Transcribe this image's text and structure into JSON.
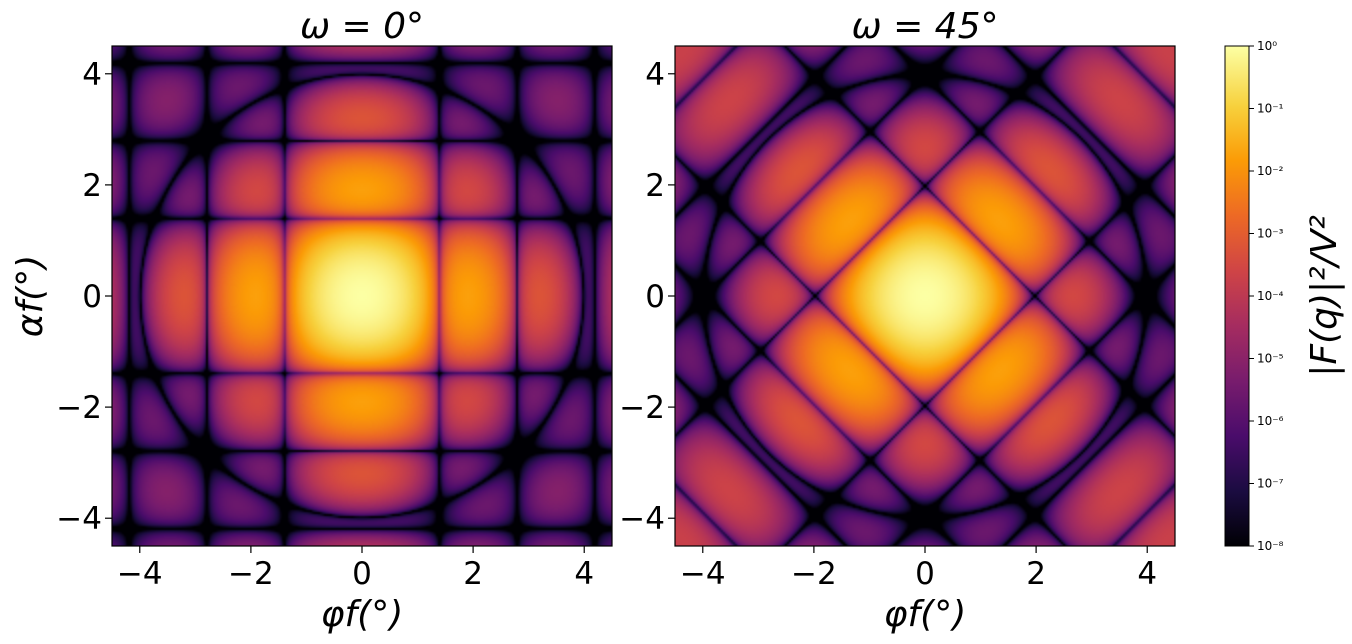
{
  "chart_data": [
    {
      "type": "heatmap",
      "title": "ω = 0°",
      "xlabel": "φf(°)",
      "ylabel": "αf(°)",
      "xlim": [
        -4.5,
        4.5
      ],
      "ylim": [
        -4.5,
        4.5
      ],
      "xticks": [
        -4,
        -2,
        0,
        2,
        4
      ],
      "yticks": [
        -4,
        -2,
        0,
        2,
        4
      ],
      "xticklabels": [
        "−4",
        "−2",
        "0",
        "2",
        "4"
      ],
      "yticklabels": [
        "−4",
        "−2",
        "0",
        "2",
        "4"
      ],
      "omega_deg": 0,
      "peak_center": [
        0,
        0
      ],
      "colormap": "inferno",
      "value_scale": "log"
    },
    {
      "type": "heatmap",
      "title": "ω = 45°",
      "xlabel": "φf(°)",
      "ylabel": "",
      "xlim": [
        -4.5,
        4.5
      ],
      "ylim": [
        -4.5,
        4.5
      ],
      "xticks": [
        -4,
        -2,
        0,
        2,
        4
      ],
      "yticks": [
        -4,
        -2,
        0,
        2,
        4
      ],
      "xticklabels": [
        "−4",
        "−2",
        "0",
        "2",
        "4"
      ],
      "yticklabels": [
        "−4",
        "−2",
        "0",
        "2",
        "4"
      ],
      "omega_deg": 45,
      "peak_center": [
        0,
        0
      ],
      "colormap": "inferno",
      "value_scale": "log"
    }
  ],
  "colorbar": {
    "label": "|F(q)|²/V²",
    "scale": "log",
    "range": [
      1e-08,
      1
    ],
    "tick_labels": [
      "10⁰",
      "10⁻¹",
      "10⁻²",
      "10⁻³",
      "10⁻⁴",
      "10⁻⁵",
      "10⁻⁶",
      "10⁻⁷",
      "10⁻⁸"
    ],
    "colors": [
      "#000004",
      "#1b0c41",
      "#4a0c6b",
      "#781c6d",
      "#a52c60",
      "#cf4446",
      "#ed6925",
      "#fb9b06",
      "#f7d13d",
      "#fcffa4"
    ]
  }
}
